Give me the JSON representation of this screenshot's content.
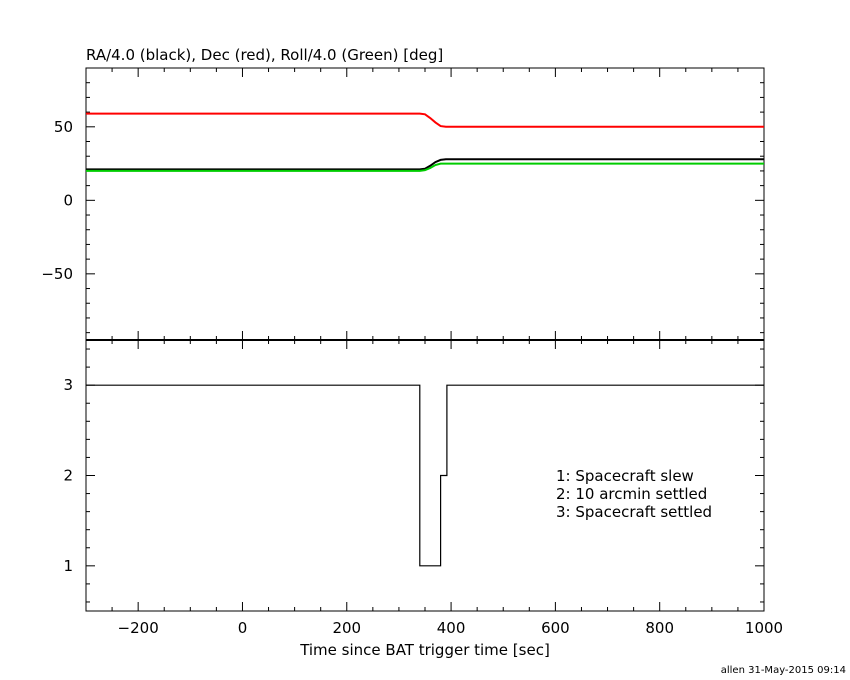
{
  "chart_data": [
    {
      "type": "line",
      "title": "RA/4.0 (black), Dec (red), Roll/4.0 (Green) [deg]",
      "xlim": [
        -300,
        1000
      ],
      "ylim": [
        -95,
        90
      ],
      "y_ticks": [
        -50,
        0,
        50
      ],
      "grid": false,
      "series": [
        {
          "color": "#000000",
          "x": [
            -300,
            340,
            350,
            360,
            370,
            380,
            390,
            1000
          ],
          "y": [
            21,
            21,
            21.5,
            23.5,
            26,
            27.5,
            28,
            28
          ]
        },
        {
          "color": "#ff0000",
          "x": [
            -300,
            340,
            350,
            360,
            370,
            380,
            390,
            1000
          ],
          "y": [
            59,
            59,
            58.5,
            56,
            53,
            50.5,
            50,
            50
          ]
        },
        {
          "color": "#00cc00",
          "x": [
            -300,
            340,
            350,
            360,
            370,
            380,
            390,
            1000
          ],
          "y": [
            20,
            20,
            20.5,
            22,
            24,
            25,
            25,
            25
          ]
        }
      ]
    },
    {
      "type": "line",
      "xlabel": "Time since BAT trigger time [sec]",
      "xlim": [
        -300,
        1000
      ],
      "ylim": [
        0.5,
        3.5
      ],
      "x_ticks": [
        -200,
        0,
        200,
        400,
        600,
        800,
        1000
      ],
      "y_ticks": [
        1,
        2,
        3
      ],
      "grid": false,
      "series": [
        {
          "color": "#000000",
          "x": [
            -300,
            340,
            340,
            380,
            380,
            392,
            392,
            1000
          ],
          "y": [
            3,
            3,
            1,
            1,
            2,
            2,
            3,
            3
          ]
        }
      ],
      "annotations": [
        "1: Spacecraft slew",
        "2: 10 arcmin settled",
        "3: Spacecraft settled"
      ]
    }
  ],
  "footer": "allen 31-May-2015 09:14"
}
